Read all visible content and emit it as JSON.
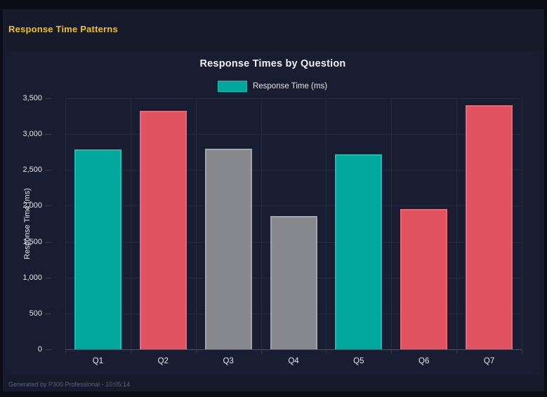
{
  "page": {
    "heading": "Response Time Patterns",
    "footer": "Generated by P300 Professional - 10:05:14"
  },
  "chart_data": {
    "type": "bar",
    "title": "Response Times by Question",
    "legend": {
      "label": "Response Time (ms)",
      "color_key": "teal",
      "position": "top"
    },
    "categories": [
      "Q1",
      "Q2",
      "Q3",
      "Q4",
      "Q5",
      "Q6",
      "Q7"
    ],
    "values": [
      2790,
      3320,
      2800,
      1860,
      2720,
      1960,
      3400
    ],
    "bar_color_keys": [
      "teal",
      "red",
      "gray",
      "gray",
      "teal",
      "red",
      "red"
    ],
    "palette": {
      "teal": {
        "fill": "#00a79b",
        "border": "#17c0b1"
      },
      "red": {
        "fill": "#e25361",
        "border": "#ee6573"
      },
      "gray": {
        "fill": "#87878e",
        "border": "#a4a4ac"
      }
    },
    "xlabel": "",
    "ylabel": "Response Time (ms)",
    "ylim": [
      0,
      3500
    ],
    "ytick_step": 500,
    "ytick_labels": [
      "3,500",
      "3,000",
      "2,500",
      "2,000",
      "1,500",
      "1,000",
      "500",
      "0"
    ],
    "grid": true
  },
  "colors": {
    "frame": "#0a0d15",
    "background": "#161a2b",
    "panel": "#191d31",
    "heading": "#f0c01c",
    "title_text": "#eef0f4",
    "axis_text": "#e2e4ea",
    "gridline": "#262b42",
    "baseline": "#4c5166",
    "tick_mark": "#3a3f55",
    "footer_text": "#5b6278"
  }
}
